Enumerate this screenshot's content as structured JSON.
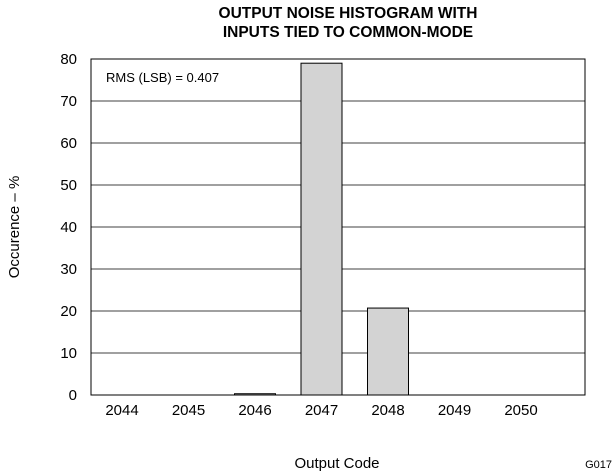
{
  "chart_data": {
    "type": "bar",
    "title_line1": "OUTPUT NOISE HISTOGRAM WITH",
    "title_line2": "INPUTS TIED TO COMMON-MODE",
    "xlabel": "Output Code",
    "ylabel": "Occurence – %",
    "categories": [
      "2044",
      "2045",
      "2046",
      "2047",
      "2048",
      "2049",
      "2050"
    ],
    "values": [
      0,
      0,
      0.3,
      79,
      20.7,
      0,
      0
    ],
    "ylim": [
      0,
      80
    ],
    "yticks": [
      "0",
      "10",
      "20",
      "30",
      "40",
      "50",
      "60",
      "70",
      "80"
    ],
    "grid": "horizontal",
    "annotation": "RMS (LSB) = 0.407",
    "figure_id": "G017",
    "bar_color": "#d3d3d3",
    "bar_stroke": "#000000"
  }
}
